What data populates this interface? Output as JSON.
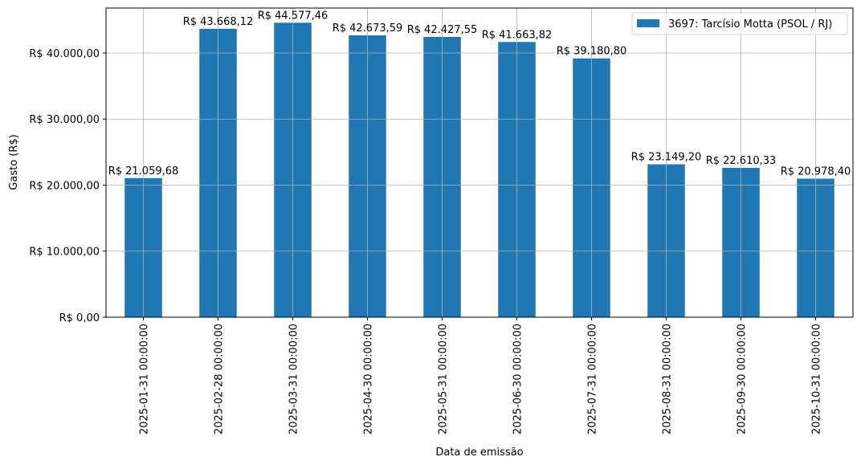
{
  "chart_data": {
    "type": "bar",
    "title": "",
    "xlabel": "Data de emissão",
    "ylabel": "Gasto (R$)",
    "categories": [
      "2025-01-31 00:00:00",
      "2025-02-28 00:00:00",
      "2025-03-31 00:00:00",
      "2025-04-30 00:00:00",
      "2025-05-31 00:00:00",
      "2025-06-30 00:00:00",
      "2025-07-31 00:00:00",
      "2025-08-31 00:00:00",
      "2025-09-30 00:00:00",
      "2025-10-31 00:00:00"
    ],
    "series": [
      {
        "name": "3697: Tarcísio Motta (PSOL / RJ)",
        "values": [
          21059.68,
          43668.12,
          44577.46,
          42673.59,
          42427.55,
          41663.82,
          39180.8,
          23149.2,
          22610.33,
          20978.4
        ],
        "labels": [
          "R$ 21.059,68",
          "R$ 43.668,12",
          "R$ 44.577,46",
          "R$ 42.673,59",
          "R$ 42.427,55",
          "R$ 41.663,82",
          "R$ 39.180,80",
          "R$ 23.149,20",
          "R$ 22.610,33",
          "R$ 20.978,40"
        ]
      }
    ],
    "yticks": [
      0,
      10000,
      20000,
      30000,
      40000
    ],
    "ytick_labels": [
      "R$ 0,00",
      "R$ 10.000,00",
      "R$ 20.000,00",
      "R$ 30.000,00",
      "R$ 40.000,00"
    ],
    "ylim": [
      0,
      46806
    ],
    "grid": true,
    "legend_position": "top-right",
    "colors": {
      "bar": "#1f77b4",
      "grid": "#b0b0b0"
    }
  }
}
